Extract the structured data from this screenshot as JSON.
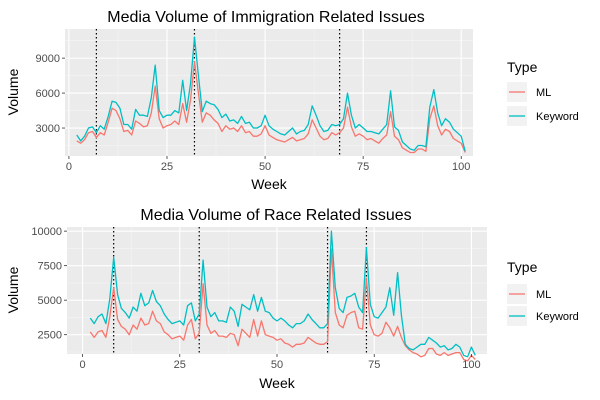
{
  "chart_data": [
    {
      "type": "line",
      "title": "Media Volume of Immigration Related Issues",
      "xlabel": "Week",
      "ylabel": "Volume",
      "xlim": [
        -1,
        103
      ],
      "ylim": [
        600,
        11500
      ],
      "x_ticks": [
        0,
        25,
        50,
        75,
        100
      ],
      "y_ticks": [
        3000,
        6000,
        9000
      ],
      "grid": true,
      "legend": {
        "title": "Type",
        "placement": "right"
      },
      "vlines": [
        7,
        32,
        69
      ],
      "x": [
        2,
        3,
        4,
        5,
        6,
        7,
        8,
        9,
        10,
        11,
        12,
        13,
        14,
        15,
        16,
        17,
        18,
        19,
        20,
        21,
        22,
        23,
        24,
        25,
        26,
        27,
        28,
        29,
        30,
        31,
        32,
        33,
        34,
        35,
        36,
        37,
        38,
        39,
        40,
        41,
        42,
        43,
        44,
        45,
        46,
        47,
        48,
        49,
        50,
        51,
        52,
        53,
        54,
        55,
        56,
        57,
        58,
        59,
        60,
        61,
        62,
        63,
        64,
        65,
        66,
        67,
        68,
        69,
        70,
        71,
        72,
        73,
        74,
        75,
        76,
        77,
        78,
        79,
        80,
        81,
        82,
        83,
        84,
        85,
        86,
        87,
        88,
        89,
        90,
        91,
        92,
        93,
        94,
        95,
        96,
        97,
        98,
        99,
        100,
        101
      ],
      "series": [
        {
          "name": "ML",
          "color": "#F8766D",
          "values": [
            1900,
            1700,
            2000,
            2600,
            2700,
            2200,
            2600,
            2400,
            3500,
            4700,
            4500,
            3800,
            2700,
            2800,
            2400,
            3600,
            3400,
            3100,
            3200,
            4300,
            6600,
            3800,
            3000,
            3200,
            3300,
            3600,
            3300,
            5100,
            3500,
            5400,
            8700,
            6000,
            3500,
            4300,
            4100,
            3700,
            3400,
            2700,
            3200,
            2900,
            3000,
            2700,
            3200,
            2600,
            2700,
            2300,
            2300,
            2500,
            3200,
            2400,
            2200,
            2000,
            1900,
            1800,
            2000,
            2200,
            1900,
            2000,
            2100,
            2500,
            3700,
            3000,
            2300,
            2000,
            2100,
            2600,
            2400,
            2600,
            3000,
            4800,
            3100,
            2300,
            2500,
            2300,
            2000,
            2100,
            1900,
            1700,
            2100,
            2400,
            4400,
            2300,
            2000,
            1300,
            1100,
            900,
            900,
            1200,
            1200,
            1000,
            3800,
            4900,
            3200,
            2400,
            2900,
            2700,
            2100,
            1900,
            1700,
            900
          ]
        },
        {
          "name": "Keyword",
          "color": "#00BFC4",
          "values": [
            2400,
            1900,
            2300,
            3000,
            3100,
            2600,
            3200,
            2900,
            4000,
            5300,
            5200,
            4700,
            3300,
            3300,
            2900,
            4600,
            4100,
            4100,
            4000,
            5600,
            8400,
            4500,
            3900,
            4100,
            4100,
            4500,
            4300,
            7100,
            4500,
            6800,
            10800,
            7500,
            4400,
            5300,
            5100,
            5000,
            4600,
            3900,
            4200,
            3600,
            3700,
            3400,
            4000,
            3400,
            3500,
            3000,
            3000,
            3200,
            4100,
            3200,
            2900,
            2700,
            2500,
            2400,
            2700,
            3000,
            2500,
            2700,
            2800,
            3300,
            4900,
            4100,
            3200,
            2700,
            2800,
            3300,
            3200,
            3300,
            3800,
            6000,
            4100,
            3000,
            3300,
            3000,
            2700,
            2700,
            2600,
            2500,
            2900,
            3300,
            6200,
            3100,
            2800,
            1800,
            1500,
            1200,
            1100,
            1500,
            1500,
            1400,
            4800,
            6300,
            4300,
            3200,
            3800,
            3500,
            2900,
            2600,
            2300,
            1000
          ]
        }
      ]
    },
    {
      "type": "line",
      "title": "Media Volume of Race Related Issues",
      "xlabel": "Week",
      "ylabel": "Volume",
      "xlim": [
        -4,
        104
      ],
      "ylim": [
        1100,
        10300
      ],
      "x_ticks": [
        0,
        25,
        50,
        75,
        100
      ],
      "y_ticks": [
        2500,
        5000,
        7500,
        10000
      ],
      "grid": true,
      "legend": {
        "title": "Type",
        "placement": "right"
      },
      "vlines": [
        8,
        30,
        63,
        73
      ],
      "x": [
        2,
        3,
        4,
        5,
        6,
        7,
        8,
        9,
        10,
        11,
        12,
        13,
        14,
        15,
        16,
        17,
        18,
        19,
        20,
        21,
        22,
        23,
        24,
        25,
        26,
        27,
        28,
        29,
        30,
        31,
        32,
        33,
        34,
        35,
        36,
        37,
        38,
        39,
        40,
        41,
        42,
        43,
        44,
        45,
        46,
        47,
        48,
        49,
        50,
        51,
        52,
        53,
        54,
        55,
        56,
        57,
        58,
        59,
        60,
        61,
        62,
        63,
        64,
        65,
        66,
        67,
        68,
        69,
        70,
        71,
        72,
        73,
        74,
        75,
        76,
        77,
        78,
        79,
        80,
        81,
        82,
        83,
        84,
        85,
        86,
        87,
        88,
        89,
        90,
        91,
        92,
        93,
        94,
        95,
        96,
        97,
        98,
        99,
        100,
        101
      ],
      "series": [
        {
          "name": "ML",
          "color": "#F8766D",
          "values": [
            2700,
            2300,
            2700,
            2800,
            2300,
            3800,
            5900,
            3600,
            3100,
            2900,
            2500,
            3200,
            2900,
            3700,
            3200,
            3300,
            4200,
            3500,
            3300,
            2700,
            2500,
            2200,
            2300,
            2400,
            2100,
            3200,
            3600,
            2200,
            2600,
            6200,
            3200,
            2600,
            2800,
            2400,
            2400,
            2300,
            2600,
            2500,
            1700,
            2900,
            2600,
            2300,
            3600,
            2400,
            3500,
            2500,
            2400,
            2300,
            2100,
            2200,
            1900,
            1800,
            1600,
            1800,
            1800,
            1900,
            2300,
            2100,
            1900,
            1800,
            1800,
            2000,
            8700,
            4100,
            3200,
            3000,
            3900,
            4100,
            4200,
            3000,
            2900,
            6600,
            3200,
            2500,
            2400,
            2600,
            3400,
            3000,
            2400,
            3100,
            2300,
            1700,
            1400,
            1200,
            1100,
            900,
            1000,
            1500,
            1500,
            1100,
            1000,
            1200,
            1000,
            1100,
            1200,
            1200,
            700,
            600,
            1000,
            700
          ]
        },
        {
          "name": "Keyword",
          "color": "#00BFC4",
          "values": [
            3700,
            3300,
            3800,
            4000,
            3300,
            5100,
            8100,
            5400,
            4400,
            4100,
            3700,
            4500,
            4200,
            5500,
            4600,
            4800,
            5700,
            4900,
            4600,
            4000,
            3600,
            3300,
            3400,
            3500,
            3200,
            4600,
            4800,
            3500,
            4000,
            7900,
            4500,
            3800,
            4100,
            3500,
            3500,
            3400,
            4500,
            4200,
            3100,
            4700,
            4500,
            4300,
            5400,
            4200,
            5200,
            4200,
            4100,
            3700,
            3500,
            3700,
            3500,
            3200,
            3000,
            3300,
            3300,
            3500,
            4000,
            3600,
            3300,
            3000,
            3000,
            3300,
            10000,
            5900,
            4400,
            4100,
            5200,
            5300,
            5500,
            4500,
            4100,
            8800,
            4700,
            3800,
            3700,
            4100,
            4500,
            5900,
            3900,
            7000,
            3900,
            1800,
            1500,
            1400,
            1600,
            1800,
            1800,
            2300,
            2100,
            1900,
            1600,
            1700,
            1400,
            1500,
            1800,
            1600,
            1000,
            900,
            1600,
            1000
          ]
        }
      ]
    }
  ]
}
